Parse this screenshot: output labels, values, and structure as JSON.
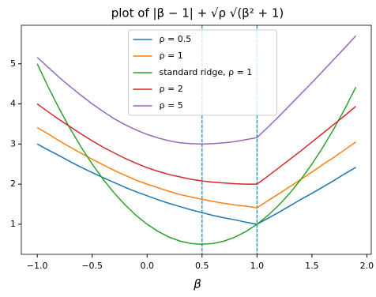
{
  "chart_data": {
    "type": "line",
    "title": "plot of |β − 1| + √ρ √(β² + 1)",
    "x_label": "β",
    "x": [
      -1,
      -0.9,
      -0.8,
      -0.7,
      -0.6,
      -0.5,
      -0.4,
      -0.3,
      -0.2,
      -0.1,
      0,
      0.1,
      0.2,
      0.3,
      0.4,
      0.5,
      0.6,
      0.7,
      0.8,
      0.9,
      1.0,
      1.1,
      1.2,
      1.3,
      1.4,
      1.5,
      1.6,
      1.7,
      1.8,
      1.9
    ],
    "series": [
      {
        "name": "ρ = 0.5",
        "color": "#1f77b4",
        "values": [
          3.0,
          2.85,
          2.71,
          2.56,
          2.42,
          2.29,
          2.16,
          2.04,
          1.92,
          1.81,
          1.71,
          1.61,
          1.52,
          1.44,
          1.36,
          1.29,
          1.22,
          1.16,
          1.11,
          1.05,
          1.0,
          1.15,
          1.3,
          1.46,
          1.62,
          1.77,
          1.93,
          2.09,
          2.26,
          2.42
        ]
      },
      {
        "name": "ρ = 1",
        "color": "#ff7f0e",
        "values": [
          3.41,
          3.25,
          3.08,
          2.92,
          2.77,
          2.62,
          2.48,
          2.34,
          2.22,
          2.1,
          2.0,
          1.91,
          1.82,
          1.74,
          1.68,
          1.62,
          1.57,
          1.52,
          1.48,
          1.45,
          1.41,
          1.59,
          1.76,
          1.94,
          2.12,
          2.3,
          2.49,
          2.67,
          2.86,
          3.05
        ]
      },
      {
        "name": "standard ridge, ρ = 1",
        "color": "#2ca02c",
        "values": [
          5,
          4.42,
          3.88,
          3.38,
          2.92,
          2.5,
          2.12,
          1.78,
          1.48,
          1.22,
          1,
          0.82,
          0.68,
          0.58,
          0.52,
          0.5,
          0.52,
          0.58,
          0.68,
          0.82,
          1,
          1.22,
          1.48,
          1.78,
          2.12,
          2.5,
          2.92,
          3.38,
          3.88,
          4.42
        ]
      },
      {
        "name": "ρ = 2",
        "color": "#d62728",
        "values": [
          4.0,
          3.8,
          3.61,
          3.43,
          3.25,
          3.08,
          2.92,
          2.78,
          2.64,
          2.52,
          2.41,
          2.32,
          2.24,
          2.18,
          2.12,
          2.08,
          2.05,
          2.03,
          2.01,
          2.0,
          2.0,
          2.2,
          2.41,
          2.62,
          2.83,
          3.05,
          3.27,
          3.49,
          3.71,
          3.94
        ]
      },
      {
        "name": "ρ = 5",
        "color": "#9467bd",
        "values": [
          5.16,
          4.91,
          4.66,
          4.43,
          4.21,
          4.0,
          3.81,
          3.63,
          3.48,
          3.35,
          3.24,
          3.15,
          3.08,
          3.03,
          3.01,
          3.0,
          3.01,
          3.03,
          3.06,
          3.11,
          3.16,
          3.42,
          3.69,
          3.97,
          4.25,
          4.53,
          4.82,
          5.11,
          5.4,
          5.7
        ]
      }
    ],
    "vlines": [
      0.5,
      1.0
    ],
    "xlim": [
      -1.145,
      2.04
    ],
    "ylim": [
      0.25,
      5.96
    ],
    "xticks": [
      {
        "value": -1,
        "label": "−1.0"
      },
      {
        "value": -0.5,
        "label": "−0.5"
      },
      {
        "value": 0,
        "label": "0.0"
      },
      {
        "value": 0.5,
        "label": "0.5"
      },
      {
        "value": 1,
        "label": "1.0"
      },
      {
        "value": 1.5,
        "label": "1.5"
      },
      {
        "value": 2,
        "label": "2.0"
      }
    ],
    "yticks": [
      1,
      2,
      3,
      4,
      5
    ],
    "legend": "upper center"
  }
}
